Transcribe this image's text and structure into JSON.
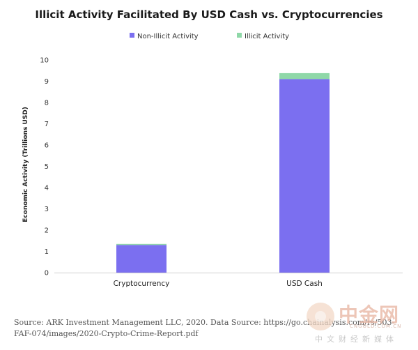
{
  "chart_data": {
    "type": "bar",
    "stacked": true,
    "title": "Illicit Activity Facilitated By USD Cash vs. Cryptocurrencies",
    "ylabel": "Economic Activity (Trillions USD)",
    "xlabel": "",
    "ylim": [
      0,
      10
    ],
    "yticks": [
      "0",
      "1",
      "2",
      "3",
      "4",
      "5",
      "6",
      "7",
      "8",
      "9",
      "10"
    ],
    "categories": [
      "Cryptocurrency",
      "USD Cash"
    ],
    "series": [
      {
        "name": "Non-Illicit Activity",
        "color": "#7b6ff0",
        "values": [
          1.3,
          9.1
        ]
      },
      {
        "name": "Illicit Activity",
        "color": "#8fd8a8",
        "values": [
          0.05,
          0.28
        ]
      }
    ],
    "legend": "top-center",
    "grid": false
  },
  "source_text": "Source: ARK Investment Management LLC, 2020. Data Source: https://go.chainalysis.com/rs/503-FAF-074/images/2020-Crypto-Crime-Report.pdf",
  "watermark": {
    "name": "中金网",
    "domain": "CNGOLD.COM.CN",
    "subtitle": "中文财经新媒体"
  }
}
